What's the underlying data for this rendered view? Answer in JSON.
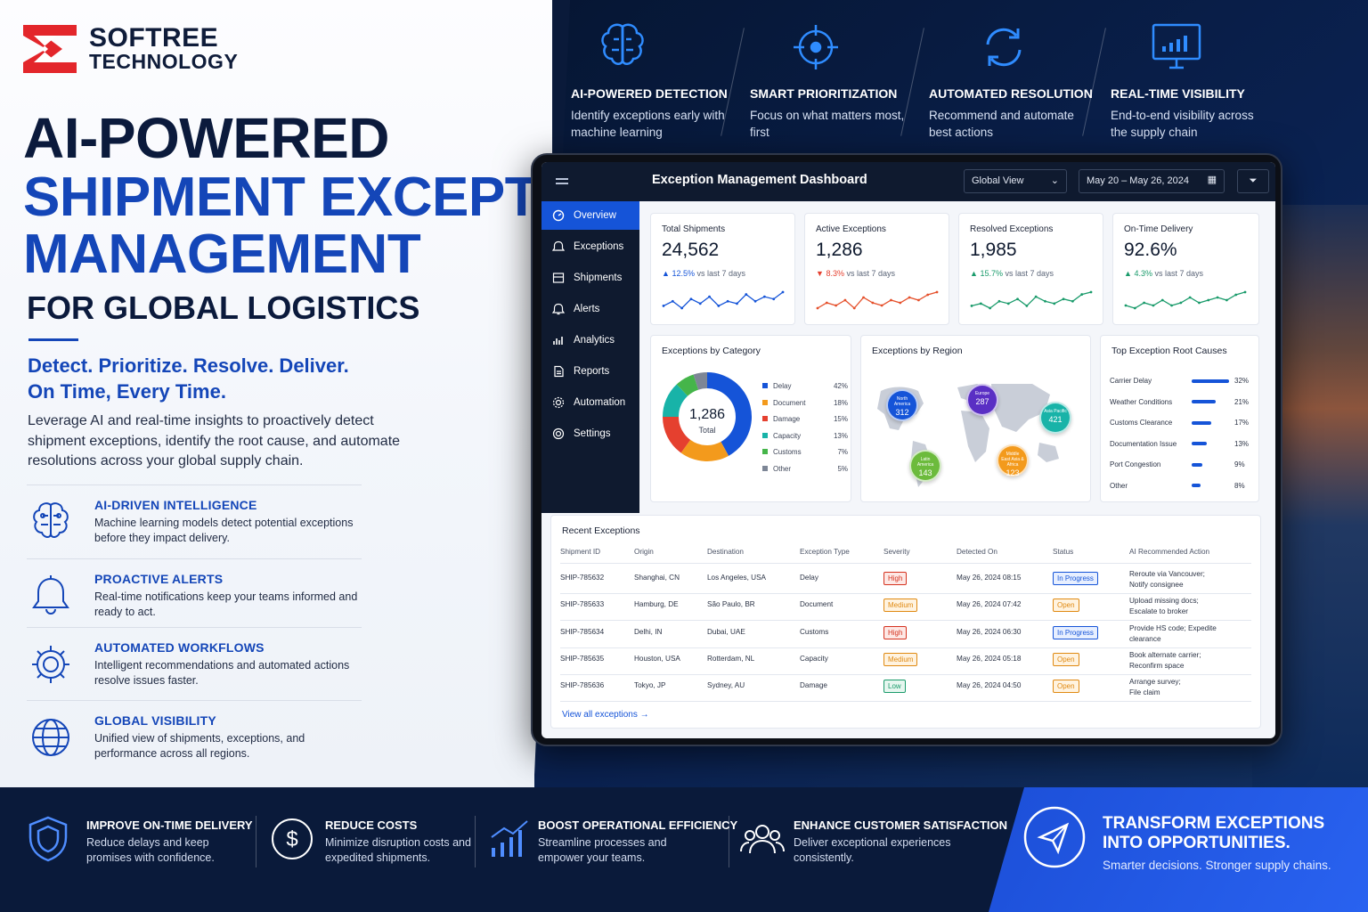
{
  "brand": {
    "line1": "SOFTREE",
    "line2": "TECHNOLOGY",
    "accent": "#e3262b",
    "blue": "#1446b8"
  },
  "hero": {
    "title1": "AI-POWERED",
    "title2": "SHIPMENT EXCEPTION",
    "title3": "MANAGEMENT",
    "title4": "FOR GLOBAL LOGISTICS",
    "tag1": "Detect. Prioritize. Resolve. Deliver.",
    "tag2": "On Time, Every Time.",
    "intro": "Leverage AI and real-time insights to proactively detect shipment exceptions, identify the root cause, and automate resolutions across your global supply chain."
  },
  "features": [
    {
      "icon": "brain-icon",
      "title": "AI-DRIVEN INTELLIGENCE",
      "desc": "Machine learning models detect potential exceptions before they impact delivery."
    },
    {
      "icon": "bell-icon",
      "title": "PROACTIVE ALERTS",
      "desc": "Real-time notifications keep your teams informed and ready to act."
    },
    {
      "icon": "gear-icon",
      "title": "AUTOMATED WORKFLOWS",
      "desc": "Intelligent recommendations and automated actions resolve issues faster."
    },
    {
      "icon": "globe-icon",
      "title": "GLOBAL VISIBILITY",
      "desc": "Unified view of shipments, exceptions, and performance across all regions."
    }
  ],
  "top_features": [
    {
      "icon": "brain-icon",
      "title": "AI-POWERED DETECTION",
      "desc": "Identify exceptions early with machine learning"
    },
    {
      "icon": "target-icon",
      "title": "SMART PRIORITIZATION",
      "desc": "Focus on what matters most, first"
    },
    {
      "icon": "refresh-icon",
      "title": "AUTOMATED RESOLUTION",
      "desc": "Recommend and automate best actions"
    },
    {
      "icon": "monitor-chart-icon",
      "title": "REAL-TIME VISIBILITY",
      "desc": "End-to-end visibility across the supply chain"
    }
  ],
  "dashboard": {
    "title": "Exception Management Dashboard",
    "view": "Global View",
    "dates": "May 20 – May 26, 2024",
    "nav": [
      "Overview",
      "Exceptions",
      "Shipments",
      "Alerts",
      "Analytics",
      "Reports",
      "Automation",
      "Settings"
    ],
    "kpis": [
      {
        "label": "Total Shipments",
        "value": "24,562",
        "delta": "12.5%",
        "delta_sfx": "vs last 7 days",
        "dir": "up",
        "color": "#1554d8",
        "spark": [
          4,
          6,
          3,
          7,
          5,
          8,
          4,
          6,
          5,
          9,
          6,
          8,
          7,
          10
        ]
      },
      {
        "label": "Active Exceptions",
        "value": "1,286",
        "delta": "8.3%",
        "delta_sfx": "vs last 7 days",
        "dir": "down",
        "color": "#e5502b",
        "spark": [
          3,
          5,
          4,
          6,
          3,
          7,
          5,
          4,
          6,
          5,
          7,
          6,
          8,
          9
        ]
      },
      {
        "label": "Resolved Exceptions",
        "value": "1,985",
        "delta": "15.7%",
        "delta_sfx": "vs last 7 days",
        "dir": "up",
        "color": "#1a9b6b",
        "spark": [
          4,
          5,
          3,
          6,
          5,
          7,
          4,
          8,
          6,
          5,
          7,
          6,
          9,
          10
        ]
      },
      {
        "label": "On-Time Delivery",
        "value": "92.6%",
        "delta": "4.3%",
        "delta_sfx": "vs last 7 days",
        "dir": "up",
        "color": "#1a9b6b",
        "spark": [
          5,
          4,
          6,
          5,
          7,
          5,
          6,
          8,
          6,
          7,
          8,
          7,
          9,
          10
        ]
      }
    ],
    "category": {
      "title": "Exceptions by Category",
      "total": "1,286",
      "total_label": "Total",
      "items": [
        {
          "name": "Delay",
          "pct": "42%",
          "v": 42,
          "color": "#1554d8"
        },
        {
          "name": "Document",
          "pct": "18%",
          "v": 18,
          "color": "#f39a1c"
        },
        {
          "name": "Damage",
          "pct": "15%",
          "v": 15,
          "color": "#e5402f"
        },
        {
          "name": "Capacity",
          "pct": "13%",
          "v": 13,
          "color": "#18b3a8"
        },
        {
          "name": "Customs",
          "pct": "7%",
          "v": 7,
          "color": "#45b54a"
        },
        {
          "name": "Other",
          "pct": "5%",
          "v": 5,
          "color": "#7d8696"
        }
      ]
    },
    "region": {
      "title": "Exceptions by Region",
      "bubbles": [
        {
          "name": "North America",
          "value": "312",
          "color": "#1554d8"
        },
        {
          "name": "Europe",
          "value": "287",
          "color": "#5a2fc4"
        },
        {
          "name": "Asia Pacific",
          "value": "421",
          "color": "#18b3a8"
        },
        {
          "name": "Middle East Asia & Africa",
          "value": "123",
          "color": "#f39a1c"
        },
        {
          "name": "Latin America",
          "value": "143",
          "color": "#6cbb3c"
        }
      ]
    },
    "root": {
      "title": "Top Exception Root Causes",
      "items": [
        {
          "name": "Carrier Delay",
          "pct": "32%",
          "v": 32
        },
        {
          "name": "Weather Conditions",
          "pct": "21%",
          "v": 21
        },
        {
          "name": "Customs Clearance",
          "pct": "17%",
          "v": 17
        },
        {
          "name": "Documentation Issue",
          "pct": "13%",
          "v": 13
        },
        {
          "name": "Port Congestion",
          "pct": "9%",
          "v": 9
        },
        {
          "name": "Other",
          "pct": "8%",
          "v": 8
        }
      ]
    },
    "recent": {
      "title": "Recent Exceptions",
      "view_all": "View all exceptions",
      "headers": [
        "Shipment ID",
        "Origin",
        "Destination",
        "Exception Type",
        "Severity",
        "Detected On",
        "Status",
        "AI Recommended Action"
      ],
      "rows": [
        [
          "SHIP-785632",
          "Shanghai, CN",
          "Los Angeles, USA",
          "Delay",
          "High",
          "May 26, 2024 08:15",
          "In Progress",
          "Reroute via Vancouver;",
          "Notify consignee"
        ],
        [
          "SHIP-785633",
          "Hamburg, DE",
          "São Paulo, BR",
          "Document",
          "Medium",
          "May 26, 2024 07:42",
          "Open",
          "Upload missing docs;",
          "Escalate to broker"
        ],
        [
          "SHIP-785634",
          "Delhi, IN",
          "Dubai, UAE",
          "Customs",
          "High",
          "May 26, 2024 06:30",
          "In Progress",
          "Provide HS code; Expedite",
          "clearance"
        ],
        [
          "SHIP-785635",
          "Houston, USA",
          "Rotterdam, NL",
          "Capacity",
          "Medium",
          "May 26, 2024 05:18",
          "Open",
          "Book alternate carrier;",
          "Reconfirm space"
        ],
        [
          "SHIP-785636",
          "Tokyo, JP",
          "Sydney, AU",
          "Damage",
          "Low",
          "May 26, 2024 04:50",
          "Open",
          "Arrange survey;",
          "File claim"
        ]
      ]
    }
  },
  "bottom": [
    {
      "icon": "shield-icon",
      "title": "IMPROVE ON-TIME DELIVERY",
      "desc": "Reduce delays and keep promises with confidence."
    },
    {
      "icon": "dollar-icon",
      "title": "REDUCE COSTS",
      "desc": "Minimize disruption costs and expedited shipments."
    },
    {
      "icon": "bar-chart-icon",
      "title": "BOOST OPERATIONAL EFFICIENCY",
      "desc": "Streamline processes and empower your teams."
    },
    {
      "icon": "people-icon",
      "title": "ENHANCE CUSTOMER SATISFACTION",
      "desc": "Deliver exceptional experiences consistently."
    }
  ],
  "cta": {
    "title1": "TRANSFORM EXCEPTIONS",
    "title2": "INTO OPPORTUNITIES.",
    "sub": "Smarter decisions. Stronger supply chains."
  }
}
